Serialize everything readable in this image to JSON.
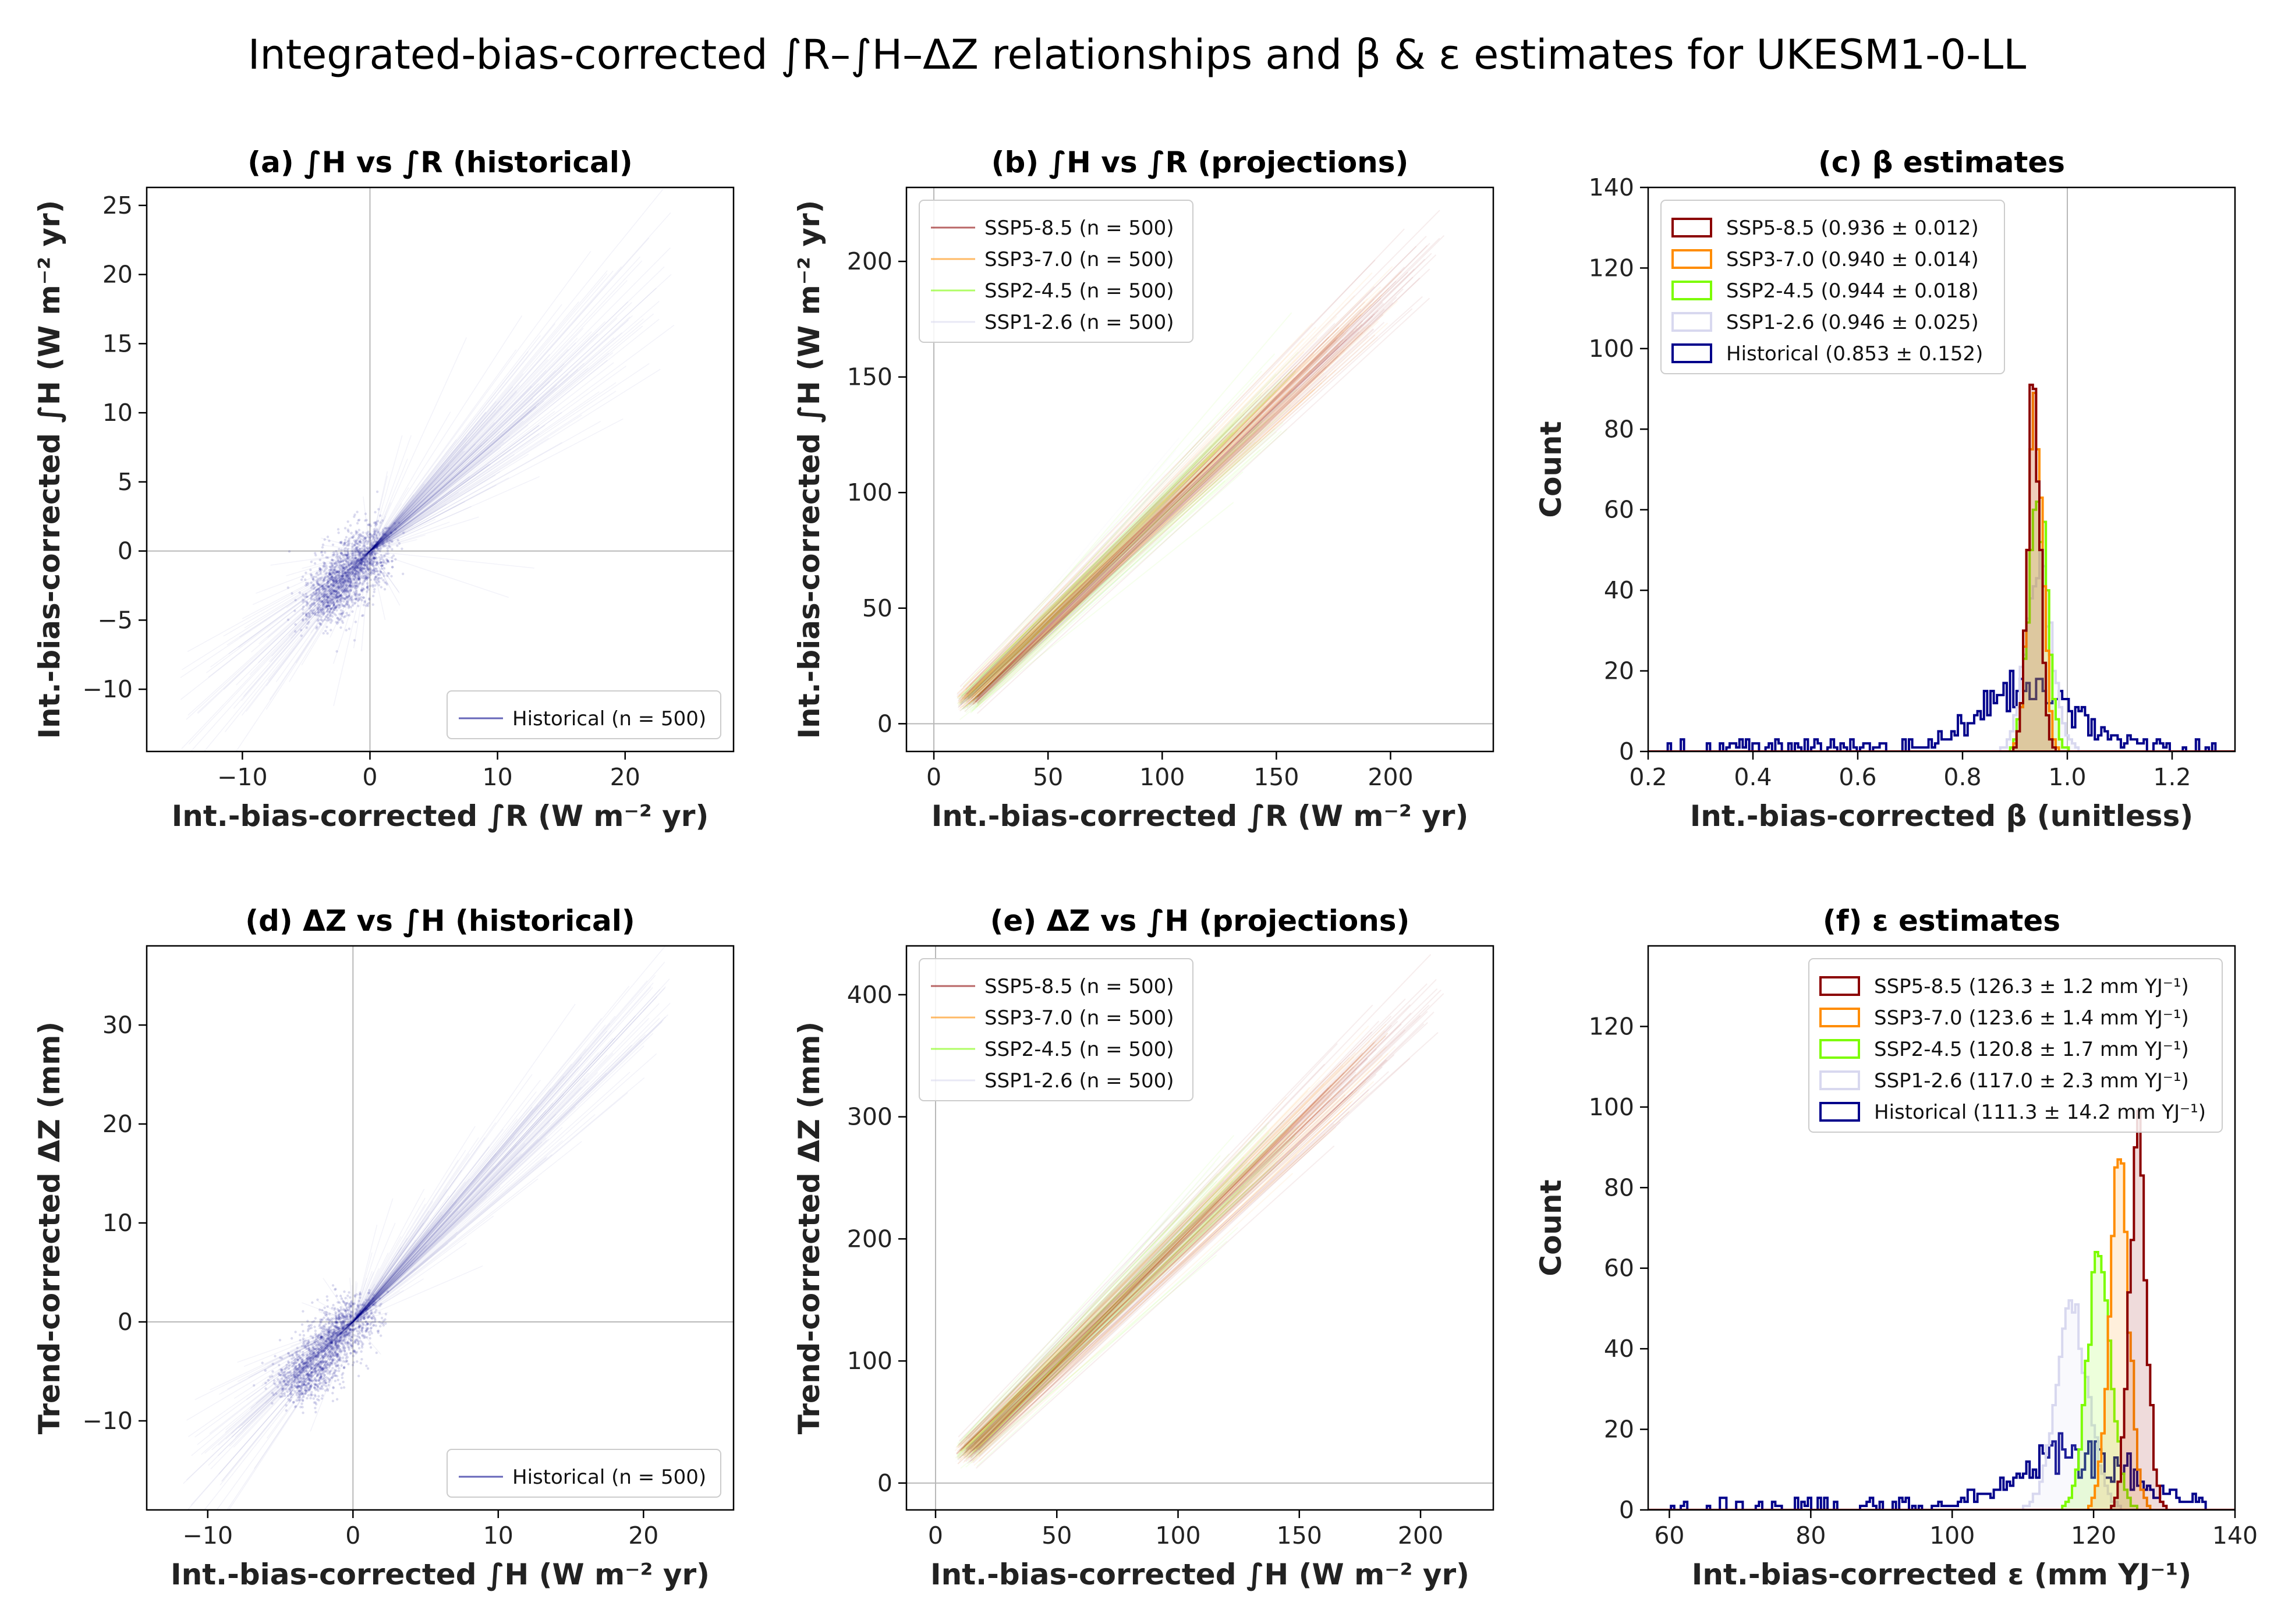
{
  "figure": {
    "title": "Integrated-bias-corrected ∫R–∫H–ΔZ relationships and β & ε estimates for UKESM1-0-LL"
  },
  "colors": {
    "historical": "#00008b",
    "ssp585": "#8b0000",
    "ssp370": "#ff8c00",
    "ssp245": "#7cfc00",
    "ssp126": "#d8d8ef",
    "refline": "#b8b8b8"
  },
  "chart_data": [
    {
      "id": "a",
      "type": "line",
      "title": "(a) ∫H vs ∫R (historical)",
      "xlabel": "Int.-bias-corrected ∫R (W m⁻² yr)",
      "ylabel": "Int.-bias-corrected ∫H (W m⁻² yr)",
      "xlim": [
        -17.5,
        28.5
      ],
      "ylim": [
        -14.5,
        26.3
      ],
      "xticks": [
        -10,
        0,
        10,
        20
      ],
      "yticks": [
        -10,
        -5,
        0,
        5,
        10,
        15,
        20,
        25
      ],
      "reference_lines": {
        "x": 0,
        "y": 0
      },
      "legend": {
        "position": "lower right",
        "entries": [
          "Historical (n = 500)"
        ]
      },
      "series": [
        {
          "name": "Historical (n = 500)",
          "color": "historical",
          "ensemble_size": 500,
          "x_range": [
            -15,
            24
          ],
          "y_range": [
            -12,
            20
          ],
          "dense_cluster": {
            "x": [
              -4,
              0.5
            ],
            "y": [
              -4,
              0.5
            ]
          }
        }
      ]
    },
    {
      "id": "b",
      "type": "line",
      "title": "(b) ∫H vs ∫R (projections)",
      "xlabel": "Int.-bias-corrected ∫R (W m⁻² yr)",
      "ylabel": "Int.-bias-corrected ∫H (W m⁻² yr)",
      "xlim": [
        -12,
        245
      ],
      "ylim": [
        -12,
        232
      ],
      "xticks": [
        0,
        50,
        100,
        150,
        200
      ],
      "yticks": [
        0,
        50,
        100,
        150,
        200
      ],
      "reference_lines": {
        "x": 0,
        "y": 0
      },
      "legend": {
        "position": "upper left",
        "entries": [
          "SSP5-8.5 (n = 500)",
          "SSP3-7.0 (n = 500)",
          "SSP2-4.5 (n = 500)",
          "SSP1-2.6 (n = 500)"
        ]
      },
      "series": [
        {
          "name": "SSP5-8.5 (n = 500)",
          "color": "ssp585",
          "x": [
            10,
            225
          ],
          "y": [
            10,
            210
          ]
        },
        {
          "name": "SSP3-7.0 (n = 500)",
          "color": "ssp370",
          "x": [
            10,
            205
          ],
          "y": [
            10,
            190
          ]
        },
        {
          "name": "SSP2-4.5 (n = 500)",
          "color": "ssp245",
          "x": [
            10,
            160
          ],
          "y": [
            10,
            150
          ]
        },
        {
          "name": "SSP1-2.6 (n = 500)",
          "color": "ssp126",
          "x": [
            10,
            125
          ],
          "y": [
            10,
            118
          ]
        }
      ]
    },
    {
      "id": "c",
      "type": "histogram",
      "title": "(c) β estimates",
      "xlabel": "Int.-bias-corrected β (unitless)",
      "ylabel": "Count",
      "xlim": [
        0.2,
        1.32
      ],
      "ylim": [
        0,
        140
      ],
      "xticks": [
        0.2,
        0.4,
        0.6,
        0.8,
        1.0,
        1.2
      ],
      "yticks": [
        0,
        20,
        40,
        60,
        80,
        100,
        120,
        140
      ],
      "reference_lines": {
        "x": 1.0
      },
      "legend": {
        "position": "upper left",
        "entries": [
          "SSP5-8.5 (0.936 ± 0.012)",
          "SSP3-7.0 (0.940 ± 0.014)",
          "SSP2-4.5 (0.944 ± 0.018)",
          "SSP1-2.6 (0.946 ± 0.025)",
          "Historical (0.853 ± 0.152)"
        ]
      },
      "series": [
        {
          "name": "SSP5-8.5 (0.936 ± 0.012)",
          "color": "ssp585",
          "mean": 0.936,
          "sd": 0.012,
          "peak": 89
        },
        {
          "name": "SSP3-7.0 (0.940 ± 0.014)",
          "color": "ssp370",
          "mean": 0.94,
          "sd": 0.014,
          "peak": 80
        },
        {
          "name": "SSP2-4.5 (0.944 ± 0.018)",
          "color": "ssp245",
          "mean": 0.944,
          "sd": 0.018,
          "peak": 62
        },
        {
          "name": "SSP1-2.6 (0.946 ± 0.025)",
          "color": "ssp126",
          "mean": 0.946,
          "sd": 0.025,
          "peak": 45
        },
        {
          "name": "Historical (0.853 ± 0.152)",
          "color": "historical",
          "mean": 0.853,
          "sd": 0.152,
          "peak": 15,
          "range": [
            0.24,
            1.29
          ]
        }
      ]
    },
    {
      "id": "d",
      "type": "line",
      "title": "(d) ΔZ vs ∫H (historical)",
      "xlabel": "Int.-bias-corrected ∫H (W m⁻² yr)",
      "ylabel": "Trend-corrected ΔZ (mm)",
      "xlim": [
        -14.2,
        26.2
      ],
      "ylim": [
        -19,
        38
      ],
      "xticks": [
        -10,
        0,
        10,
        20
      ],
      "yticks": [
        -10,
        0,
        10,
        20,
        30
      ],
      "reference_lines": {
        "x": 0,
        "y": 0
      },
      "legend": {
        "position": "lower right",
        "entries": [
          "Historical (n = 500)"
        ]
      },
      "series": [
        {
          "name": "Historical (n = 500)",
          "color": "historical",
          "ensemble_size": 500,
          "x_range": [
            -12,
            22
          ],
          "y_range": [
            -16,
            34
          ],
          "dense_cluster": {
            "x": [
              -4,
              0.5
            ],
            "y": [
              -7,
              1.5
            ]
          }
        }
      ]
    },
    {
      "id": "e",
      "type": "line",
      "title": "(e) ΔZ vs ∫H (projections)",
      "xlabel": "Int.-bias-corrected ∫H (W m⁻² yr)",
      "ylabel": "Trend-corrected ΔZ (mm)",
      "xlim": [
        -12,
        230
      ],
      "ylim": [
        -22,
        440
      ],
      "xticks": [
        0,
        50,
        100,
        150,
        200
      ],
      "yticks": [
        0,
        100,
        200,
        300,
        400
      ],
      "reference_lines": {
        "x": 0,
        "y": 0
      },
      "legend": {
        "position": "upper left",
        "entries": [
          "SSP5-8.5 (n = 500)",
          "SSP3-7.0 (n = 500)",
          "SSP2-4.5 (n = 500)",
          "SSP1-2.6 (n = 500)"
        ]
      },
      "series": [
        {
          "name": "SSP5-8.5 (n = 500)",
          "color": "ssp585",
          "x": [
            8,
            210
          ],
          "y": [
            25,
            405
          ]
        },
        {
          "name": "SSP3-7.0 (n = 500)",
          "color": "ssp370",
          "x": [
            8,
            190
          ],
          "y": [
            25,
            370
          ]
        },
        {
          "name": "SSP2-4.5 (n = 500)",
          "color": "ssp245",
          "x": [
            8,
            150
          ],
          "y": [
            25,
            295
          ]
        },
        {
          "name": "SSP1-2.6 (n = 500)",
          "color": "ssp126",
          "x": [
            8,
            118
          ],
          "y": [
            25,
            235
          ]
        }
      ]
    },
    {
      "id": "f",
      "type": "histogram",
      "title": "(f) ε estimates",
      "xlabel": "Int.-bias-corrected ε (mm YJ⁻¹)",
      "ylabel": "Count",
      "xlim": [
        57,
        140
      ],
      "ylim": [
        0,
        140
      ],
      "xticks": [
        60,
        80,
        100,
        120,
        140
      ],
      "yticks": [
        0,
        20,
        40,
        60,
        80,
        100,
        120
      ],
      "legend": {
        "position": "upper right",
        "entries": [
          "SSP5-8.5 (126.3 ± 1.2 mm YJ⁻¹)",
          "SSP3-7.0 (123.6 ± 1.4 mm YJ⁻¹)",
          "SSP2-4.5 (120.8 ± 1.7 mm YJ⁻¹)",
          "SSP1-2.6 (117.0 ± 2.3 mm YJ⁻¹)",
          "Historical (111.3 ± 14.2 mm YJ⁻¹)"
        ]
      },
      "series": [
        {
          "name": "SSP5-8.5 (126.3 ± 1.2 mm YJ⁻¹)",
          "color": "ssp585",
          "mean": 126.3,
          "sd": 1.2,
          "peak": 88
        },
        {
          "name": "SSP3-7.0 (123.6 ± 1.4 mm YJ⁻¹)",
          "color": "ssp370",
          "mean": 123.6,
          "sd": 1.4,
          "peak": 81
        },
        {
          "name": "SSP2-4.5 (120.8 ± 1.7 mm YJ⁻¹)",
          "color": "ssp245",
          "mean": 120.8,
          "sd": 1.7,
          "peak": 63
        },
        {
          "name": "SSP1-2.6 (117.0 ± 2.3 mm YJ⁻¹)",
          "color": "ssp126",
          "mean": 117.0,
          "sd": 2.3,
          "peak": 50
        },
        {
          "name": "Historical (111.3 ± 14.2 mm YJ⁻¹)",
          "color": "historical",
          "mean": 111.3,
          "sd": 14.2,
          "peak": 13,
          "range": [
            60,
            136
          ]
        }
      ]
    }
  ]
}
